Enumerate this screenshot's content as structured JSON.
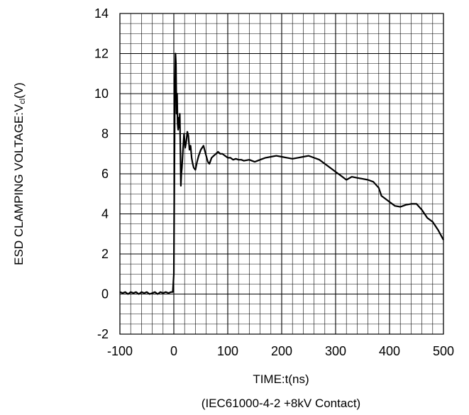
{
  "chart_data": {
    "type": "line",
    "title": "",
    "xlabel": "TIME:t(ns)",
    "ylabel_main": "ESD CLAMPING VOLTAGE:V",
    "ylabel_sub": "cl",
    "ylabel_tail": "(V)",
    "note": "(IEC61000-4-2 +8kV Contact)",
    "xlim": [
      -100,
      500
    ],
    "ylim": [
      -2,
      14
    ],
    "x_major_ticks": [
      -100,
      0,
      100,
      200,
      300,
      400,
      500
    ],
    "y_major_ticks": [
      -2,
      0,
      2,
      4,
      6,
      8,
      10,
      12,
      14
    ],
    "x_tick_labels": [
      "-100",
      "0",
      "100",
      "200",
      "300",
      "400",
      "500"
    ],
    "y_tick_labels": [
      "-2",
      "0",
      "2",
      "4",
      "6",
      "8",
      "10",
      "12",
      "14"
    ],
    "x_minor_step": 20,
    "y_minor_step": 0.5,
    "grid": true,
    "colors": {
      "line": "#000000",
      "grid": "#000000",
      "background": "#ffffff"
    },
    "series": [
      {
        "x": [
          -100,
          -95,
          -90,
          -85,
          -80,
          -75,
          -70,
          -65,
          -60,
          -55,
          -50,
          -45,
          -40,
          -35,
          -30,
          -25,
          -20,
          -15,
          -10,
          -5,
          -2,
          0,
          1,
          2,
          3,
          4,
          5,
          6,
          7,
          8,
          9,
          10,
          11,
          12,
          13,
          14,
          15,
          17,
          19,
          21,
          23,
          25,
          27,
          29,
          31,
          33,
          35,
          37,
          40,
          43,
          46,
          50,
          55,
          60,
          63,
          66,
          70,
          74,
          78,
          82,
          86,
          90,
          95,
          100,
          105,
          110,
          115,
          120,
          125,
          130,
          140,
          150,
          160,
          170,
          180,
          190,
          200,
          210,
          220,
          230,
          240,
          250,
          260,
          270,
          280,
          290,
          300,
          310,
          320,
          330,
          340,
          350,
          360,
          370,
          380,
          385,
          390,
          395,
          400,
          410,
          420,
          430,
          440,
          450,
          455,
          460,
          465,
          470,
          480,
          490,
          500
        ],
        "y": [
          0.1,
          0.05,
          0.1,
          0.0,
          0.1,
          0.05,
          0.1,
          0.0,
          0.1,
          0.05,
          0.1,
          0.0,
          0.05,
          0.1,
          0.0,
          0.1,
          0.05,
          0.1,
          0.05,
          0.1,
          0.1,
          1.0,
          6.0,
          10.5,
          12.0,
          11.5,
          9.0,
          10.0,
          8.5,
          8.2,
          8.8,
          8.3,
          9.0,
          7.5,
          5.4,
          6.0,
          6.3,
          7.2,
          8.0,
          7.3,
          7.6,
          8.1,
          7.9,
          7.2,
          7.4,
          6.8,
          6.5,
          6.3,
          6.2,
          6.6,
          6.9,
          7.2,
          7.4,
          6.9,
          6.6,
          6.5,
          6.8,
          6.9,
          7.0,
          7.1,
          7.0,
          7.0,
          6.9,
          6.8,
          6.8,
          6.7,
          6.75,
          6.7,
          6.7,
          6.65,
          6.7,
          6.6,
          6.7,
          6.8,
          6.85,
          6.9,
          6.85,
          6.8,
          6.75,
          6.8,
          6.85,
          6.9,
          6.8,
          6.7,
          6.5,
          6.3,
          6.1,
          5.9,
          5.7,
          5.85,
          5.8,
          5.75,
          5.7,
          5.6,
          5.3,
          4.9,
          4.8,
          4.7,
          4.6,
          4.4,
          4.35,
          4.45,
          4.5,
          4.5,
          4.35,
          4.2,
          4.0,
          3.8,
          3.6,
          3.2,
          2.7
        ]
      }
    ]
  }
}
